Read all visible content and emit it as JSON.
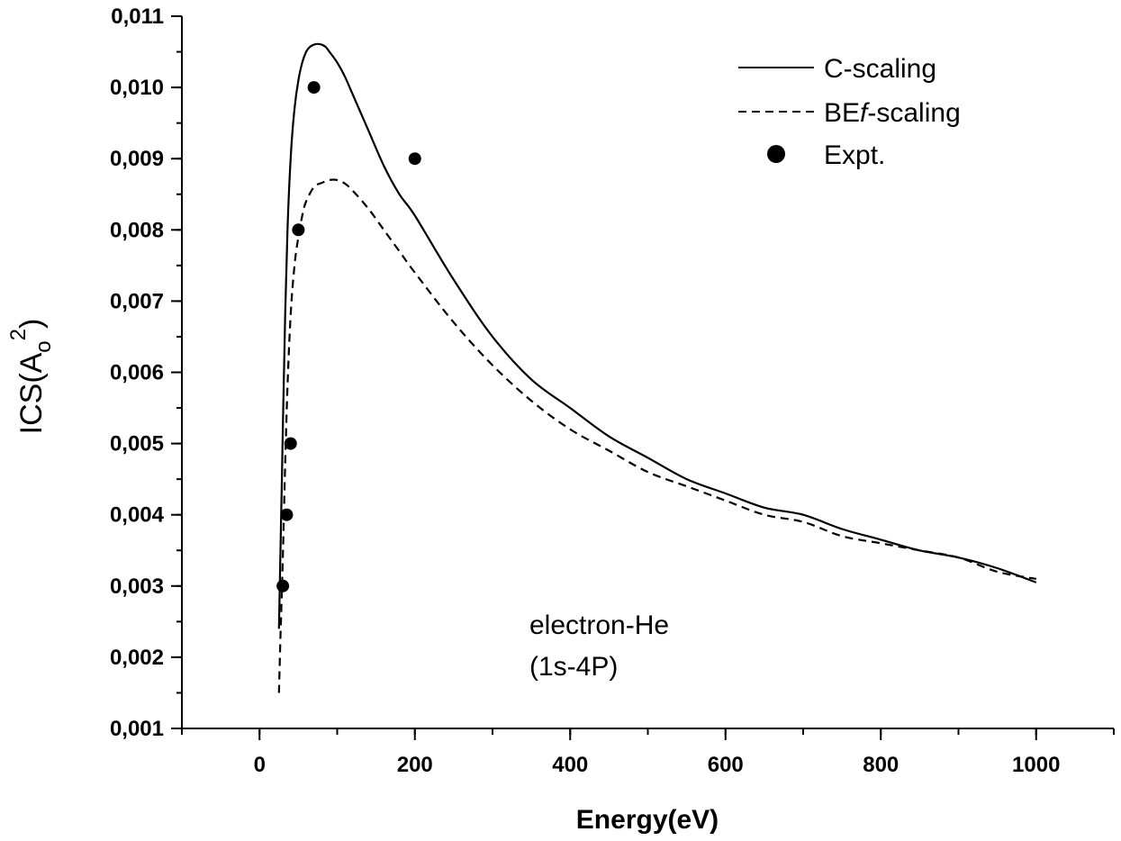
{
  "chart_data": {
    "type": "line",
    "title": "",
    "xlabel": "Energy(eV)",
    "ylabel": {
      "base": "ICS(A",
      "subscript": "o",
      "superscript": "2",
      "close": ")"
    },
    "xlim": [
      -100,
      1100
    ],
    "ylim": [
      0.001,
      0.011
    ],
    "x_ticks": [
      0,
      200,
      400,
      600,
      800,
      1000
    ],
    "x_tick_labels": [
      "0",
      "200",
      "400",
      "600",
      "800",
      "1000"
    ],
    "x_minor_step": 100,
    "y_ticks": [
      0.001,
      0.002,
      0.003,
      0.004,
      0.005,
      0.006,
      0.007,
      0.008,
      0.009,
      0.01,
      0.011
    ],
    "y_tick_labels": [
      "0,001",
      "0,002",
      "0,003",
      "0,004",
      "0,005",
      "0,006",
      "0,007",
      "0,008",
      "0,009",
      "0,010",
      "0,011"
    ],
    "y_minor_step": 0.0005,
    "grid": false,
    "legend_position": "top-right",
    "series": [
      {
        "name": "C-scaling",
        "style": "solid",
        "color": "#000000",
        "x": [
          25,
          27,
          30,
          33,
          36,
          40,
          45,
          50,
          55,
          60,
          65,
          70,
          75,
          80,
          85,
          90,
          100,
          110,
          120,
          140,
          160,
          180,
          200,
          250,
          300,
          350,
          400,
          450,
          500,
          550,
          600,
          650,
          700,
          750,
          800,
          850,
          900,
          950,
          1000
        ],
        "y": [
          0.0024,
          0.0035,
          0.0052,
          0.0068,
          0.008,
          0.009,
          0.0097,
          0.0101,
          0.01035,
          0.0105,
          0.01057,
          0.0106,
          0.01061,
          0.0106,
          0.01057,
          0.0105,
          0.01035,
          0.01015,
          0.0099,
          0.0094,
          0.0089,
          0.0085,
          0.0082,
          0.0073,
          0.0065,
          0.0059,
          0.0055,
          0.0051,
          0.0048,
          0.0045,
          0.0043,
          0.0041,
          0.004,
          0.0038,
          0.00365,
          0.0035,
          0.0034,
          0.00325,
          0.00305
        ]
      },
      {
        "name": "BEf-scaling",
        "name_parts": [
          "BE",
          "f",
          "-scaling"
        ],
        "style": "dashed",
        "color": "#000000",
        "x": [
          25,
          27,
          30,
          33,
          36,
          40,
          45,
          50,
          55,
          60,
          70,
          80,
          90,
          100,
          110,
          120,
          140,
          160,
          180,
          200,
          250,
          300,
          350,
          400,
          450,
          500,
          550,
          600,
          650,
          700,
          750,
          800,
          850,
          900,
          950,
          1000
        ],
        "y": [
          0.0015,
          0.0023,
          0.0034,
          0.0047,
          0.0058,
          0.0068,
          0.0075,
          0.0079,
          0.0082,
          0.0084,
          0.0086,
          0.00866,
          0.0087,
          0.0087,
          0.00865,
          0.00855,
          0.0083,
          0.008,
          0.0077,
          0.0074,
          0.0067,
          0.0061,
          0.0056,
          0.0052,
          0.0049,
          0.0046,
          0.0044,
          0.0042,
          0.004,
          0.0039,
          0.0037,
          0.0036,
          0.0035,
          0.0034,
          0.0032,
          0.0031
        ]
      },
      {
        "name": "Expt.",
        "style": "markers",
        "color": "#000000",
        "x": [
          30,
          35,
          40,
          50,
          70,
          200
        ],
        "y": [
          0.003,
          0.004,
          0.005,
          0.008,
          0.01,
          0.009
        ]
      }
    ],
    "annotations": [
      "electron-He",
      "(1s-4P)"
    ]
  }
}
